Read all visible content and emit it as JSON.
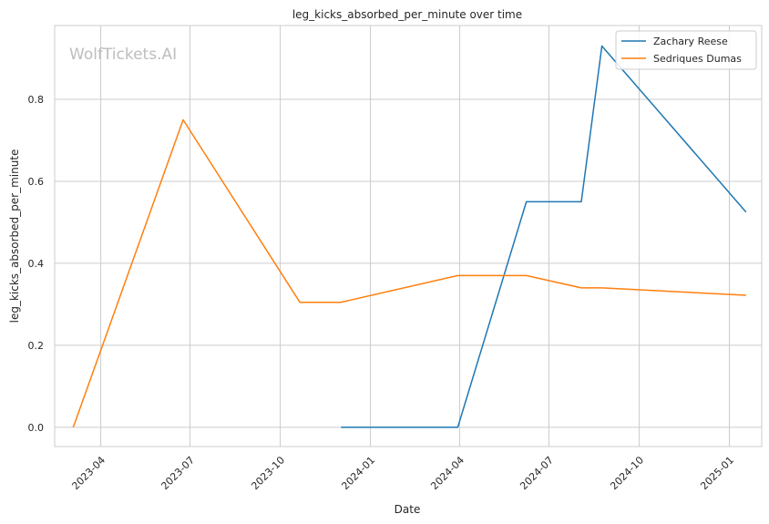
{
  "chart_data": {
    "type": "line",
    "title": "leg_kicks_absorbed_per_minute over time",
    "xlabel": "Date",
    "ylabel": "leg_kicks_absorbed_per_minute",
    "watermark": "WolfTickets.AI",
    "x_ticks": [
      "2023-04",
      "2023-07",
      "2023-10",
      "2024-01",
      "2024-04",
      "2024-07",
      "2024-10",
      "2025-01"
    ],
    "y_ticks": [
      "0.0",
      "0.2",
      "0.4",
      "0.6",
      "0.8"
    ],
    "xlim": [
      "2023-02-13",
      "2025-02-03"
    ],
    "ylim": [
      -0.047,
      0.98
    ],
    "grid": true,
    "legend_position": "top-right",
    "series": [
      {
        "name": "Zachary Reese",
        "color": "#1f77b4",
        "points": [
          {
            "x": "2023-12-02",
            "y": 0.0
          },
          {
            "x": "2024-03-30",
            "y": 0.0
          },
          {
            "x": "2024-06-08",
            "y": 0.55
          },
          {
            "x": "2024-08-03",
            "y": 0.55
          },
          {
            "x": "2024-08-24",
            "y": 0.93
          },
          {
            "x": "2025-01-18",
            "y": 0.525
          }
        ]
      },
      {
        "name": "Sedriques Dumas",
        "color": "#ff7f0e",
        "points": [
          {
            "x": "2023-03-04",
            "y": 0.0
          },
          {
            "x": "2023-06-24",
            "y": 0.75
          },
          {
            "x": "2023-10-21",
            "y": 0.305
          },
          {
            "x": "2023-12-02",
            "y": 0.305
          },
          {
            "x": "2024-03-30",
            "y": 0.37
          },
          {
            "x": "2024-06-08",
            "y": 0.37
          },
          {
            "x": "2024-08-03",
            "y": 0.34
          },
          {
            "x": "2024-08-24",
            "y": 0.34
          },
          {
            "x": "2025-01-18",
            "y": 0.322
          }
        ]
      }
    ]
  }
}
